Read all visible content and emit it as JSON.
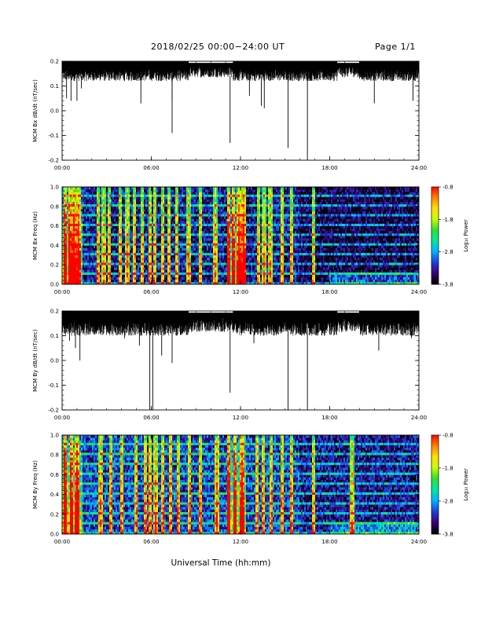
{
  "header": {
    "title": "2018/02/25  00:00−24:00 UT",
    "page": "Page 1/1"
  },
  "xaxis": {
    "label": "Universal Time (hh:mm)",
    "ticks": [
      "00:00",
      "06:00",
      "12:00",
      "18:00",
      "24:00"
    ]
  },
  "colorbar": {
    "label": "Log₁₀ Power",
    "ticks": [
      "-0.8",
      "-1.8",
      "-2.8",
      "-3.8"
    ],
    "range": [
      -3.8,
      -0.8
    ],
    "colors": [
      "#000000",
      "#3a007a",
      "#1f3fd8",
      "#00b4ff",
      "#00e8a0",
      "#30e030",
      "#c8ff00",
      "#ffe000",
      "#ff8000",
      "#ff0000"
    ]
  },
  "chart_data": [
    {
      "type": "line",
      "ylabel": "MCM Bx dB/dt (nT/sec)",
      "xrange_hours": [
        0,
        24
      ],
      "ylim": [
        -0.2,
        0.2
      ],
      "yticks": [
        "-0.2",
        "-0.1",
        "0.0",
        "0.1",
        "0.2"
      ],
      "baseline": 0.18,
      "noise_band": [
        0.12,
        0.2
      ],
      "spikes": [
        {
          "t": 0.3,
          "v": 0.05
        },
        {
          "t": 0.6,
          "v": 0.04
        },
        {
          "t": 1.0,
          "v": 0.04
        },
        {
          "t": 1.3,
          "v": 0.09
        },
        {
          "t": 5.3,
          "v": 0.03
        },
        {
          "t": 7.4,
          "v": 0.04
        },
        {
          "t": 7.4,
          "v": -0.09
        },
        {
          "t": 11.3,
          "v": -0.13
        },
        {
          "t": 12.6,
          "v": 0.06
        },
        {
          "t": 13.4,
          "v": 0.02
        },
        {
          "t": 13.6,
          "v": 0.01
        },
        {
          "t": 15.2,
          "v": -0.15
        },
        {
          "t": 16.5,
          "v": -0.2
        },
        {
          "t": 21.0,
          "v": 0.03
        },
        {
          "t": 23.6,
          "v": 0.04
        }
      ],
      "color": "#000000"
    },
    {
      "type": "heatmap",
      "ylabel": "MCM Bx Freq (Hz)",
      "xrange_hours": [
        0,
        24
      ],
      "ylim": [
        0.0,
        1.0
      ],
      "yticks": [
        "0.0",
        "0.2",
        "0.4",
        "0.6",
        "0.8",
        "1.0"
      ],
      "bright_columns_hours": [
        0.2,
        0.5,
        0.8,
        1.1,
        2.4,
        2.8,
        3.2,
        3.9,
        4.4,
        4.9,
        5.4,
        5.9,
        6.2,
        6.8,
        7.2,
        7.7,
        8.5,
        9.3,
        10.3,
        11.2,
        11.5,
        11.9,
        12.2,
        13.2,
        13.6,
        14.0,
        14.8,
        15.4,
        16.9
      ],
      "background_power": -3.4
    },
    {
      "type": "line",
      "ylabel": "MCM By dB/dt (nT/sec)",
      "xrange_hours": [
        0,
        24
      ],
      "ylim": [
        -0.2,
        0.2
      ],
      "yticks": [
        "-0.2",
        "-0.1",
        "0.0",
        "0.1",
        "0.2"
      ],
      "baseline": 0.17,
      "noise_band": [
        0.1,
        0.2
      ],
      "spikes": [
        {
          "t": 0.5,
          "v": 0.08
        },
        {
          "t": 0.9,
          "v": 0.05
        },
        {
          "t": 1.2,
          "v": 0.0
        },
        {
          "t": 4.2,
          "v": 0.09
        },
        {
          "t": 5.2,
          "v": 0.06
        },
        {
          "t": 5.9,
          "v": -0.21
        },
        {
          "t": 6.1,
          "v": -0.2
        },
        {
          "t": 6.7,
          "v": 0.02
        },
        {
          "t": 7.4,
          "v": -0.01
        },
        {
          "t": 11.3,
          "v": -0.13
        },
        {
          "t": 12.9,
          "v": 0.07
        },
        {
          "t": 15.2,
          "v": -0.2
        },
        {
          "t": 16.5,
          "v": -0.2
        },
        {
          "t": 21.3,
          "v": 0.04
        },
        {
          "t": 23.5,
          "v": 0.09
        }
      ],
      "color": "#000000"
    },
    {
      "type": "heatmap",
      "ylabel": "MCM By Freq (Hz)",
      "xrange_hours": [
        0,
        24
      ],
      "ylim": [
        0.0,
        1.0
      ],
      "yticks": [
        "0.0",
        "0.2",
        "0.4",
        "0.6",
        "0.8",
        "1.0"
      ],
      "bright_columns_hours": [
        0.2,
        0.6,
        1.0,
        2.6,
        3.3,
        4.0,
        5.0,
        5.6,
        5.9,
        6.3,
        6.8,
        7.3,
        7.8,
        8.6,
        9.3,
        10.4,
        11.2,
        11.6,
        12.1,
        13.1,
        13.5,
        14.1,
        14.8,
        15.4,
        16.9,
        19.5
      ],
      "background_power": -3.2
    }
  ]
}
